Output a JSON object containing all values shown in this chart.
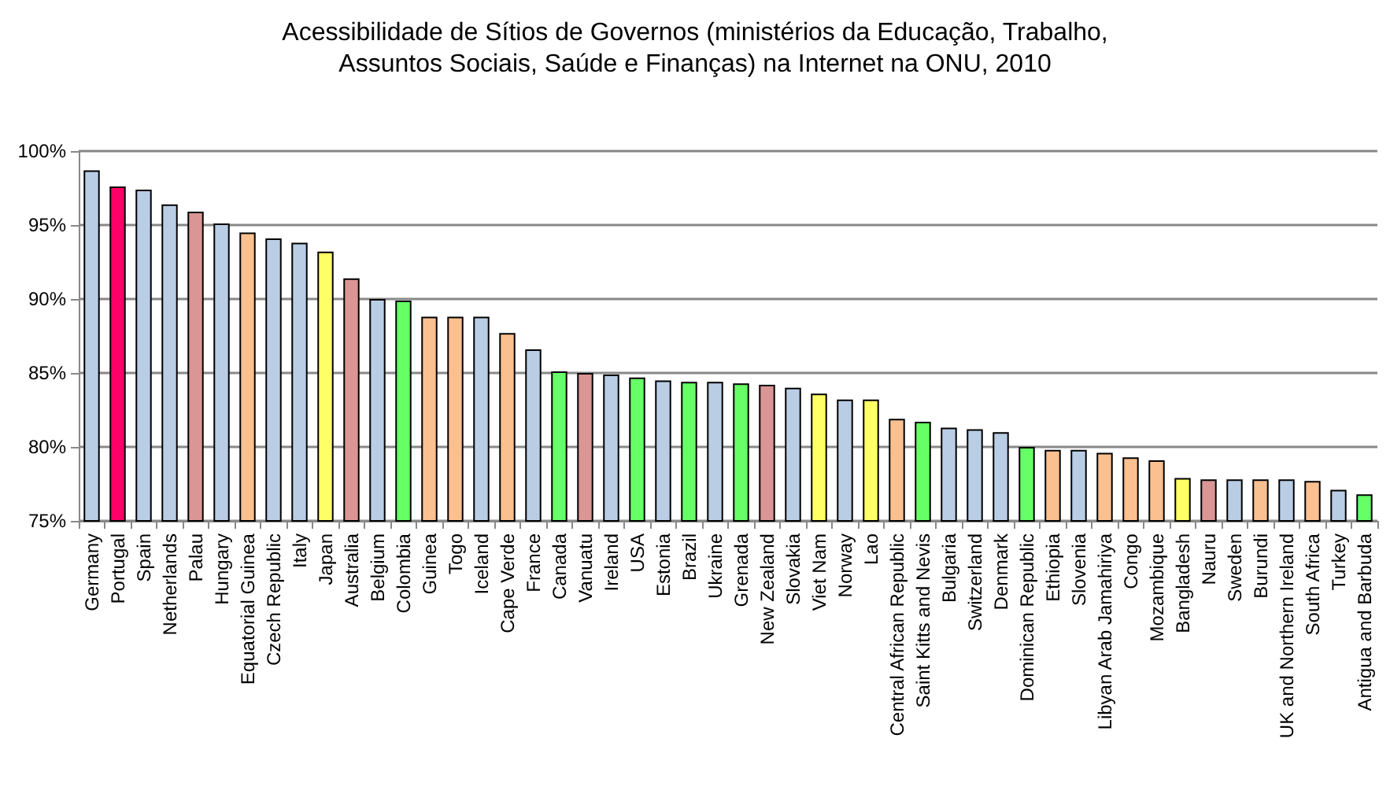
{
  "chart_data": {
    "type": "bar",
    "title": "Acessibilidade de Sítios de Governos (ministérios da Educação, Trabalho,\nAssuntos Sociais, Saúde e Finanças) na Internet na ONU, 2010",
    "categories": [
      "Germany",
      "Portugal",
      "Spain",
      "Netherlands",
      "Palau",
      "Hungary",
      "Equatorial Guinea",
      "Czech Republic",
      "Italy",
      "Japan",
      "Australia",
      "Belgium",
      "Colombia",
      "Guinea",
      "Togo",
      "Iceland",
      "Cape Verde",
      "France",
      "Canada",
      "Vanuatu",
      "Ireland",
      "USA",
      "Estonia",
      "Brazil",
      "Ukraine",
      "Grenada",
      "New Zealand",
      "Slovakia",
      "Viet Nam",
      "Norway",
      "Lao",
      "Central African Republic",
      "Saint Kitts and Nevis",
      "Bulgaria",
      "Switzerland",
      "Denmark",
      "Dominican Republic",
      "Ethiopia",
      "Slovenia",
      "Libyan Arab Jamahiriya",
      "Congo",
      "Mozambique",
      "Bangladesh",
      "Nauru",
      "Sweden",
      "Burundi",
      "UK and Northern Ireland",
      "South Africa",
      "Turkey",
      "Antigua and Barbuda"
    ],
    "values": [
      98.7,
      97.6,
      97.4,
      96.4,
      95.9,
      95.1,
      94.5,
      94.1,
      93.8,
      93.2,
      91.4,
      90.0,
      89.9,
      88.8,
      88.8,
      88.8,
      87.7,
      86.6,
      85.1,
      85.0,
      84.9,
      84.7,
      84.5,
      84.4,
      84.4,
      84.3,
      84.2,
      84.0,
      83.6,
      83.2,
      83.2,
      81.9,
      81.7,
      81.3,
      81.2,
      81.0,
      80.0,
      79.8,
      79.8,
      79.6,
      79.3,
      79.1,
      77.9,
      77.8,
      77.8,
      77.8,
      77.8,
      77.7,
      77.1,
      76.8
    ],
    "colors": [
      "#b9cde5",
      "#ff0066",
      "#b9cde5",
      "#b9cde5",
      "#d99694",
      "#b9cde5",
      "#fac090",
      "#b9cde5",
      "#b9cde5",
      "#ffff66",
      "#d99694",
      "#b9cde5",
      "#66ff66",
      "#fac090",
      "#fac090",
      "#b9cde5",
      "#fac090",
      "#b9cde5",
      "#66ff66",
      "#d99694",
      "#b9cde5",
      "#66ff66",
      "#b9cde5",
      "#66ff66",
      "#b9cde5",
      "#66ff66",
      "#d99694",
      "#b9cde5",
      "#ffff66",
      "#b9cde5",
      "#ffff66",
      "#fac090",
      "#66ff66",
      "#b9cde5",
      "#b9cde5",
      "#b9cde5",
      "#66ff66",
      "#fac090",
      "#b9cde5",
      "#fac090",
      "#fac090",
      "#fac090",
      "#ffff66",
      "#d99694",
      "#b9cde5",
      "#fac090",
      "#b9cde5",
      "#fac090",
      "#b9cde5",
      "#66ff66"
    ],
    "ylim": [
      75,
      100
    ],
    "yticks": [
      {
        "value": 75,
        "label": "75%"
      },
      {
        "value": 80,
        "label": "80%"
      },
      {
        "value": 85,
        "label": "85%"
      },
      {
        "value": 90,
        "label": "90%"
      },
      {
        "value": 95,
        "label": "95%"
      },
      {
        "value": 100,
        "label": "100%"
      }
    ],
    "grid": "y"
  }
}
